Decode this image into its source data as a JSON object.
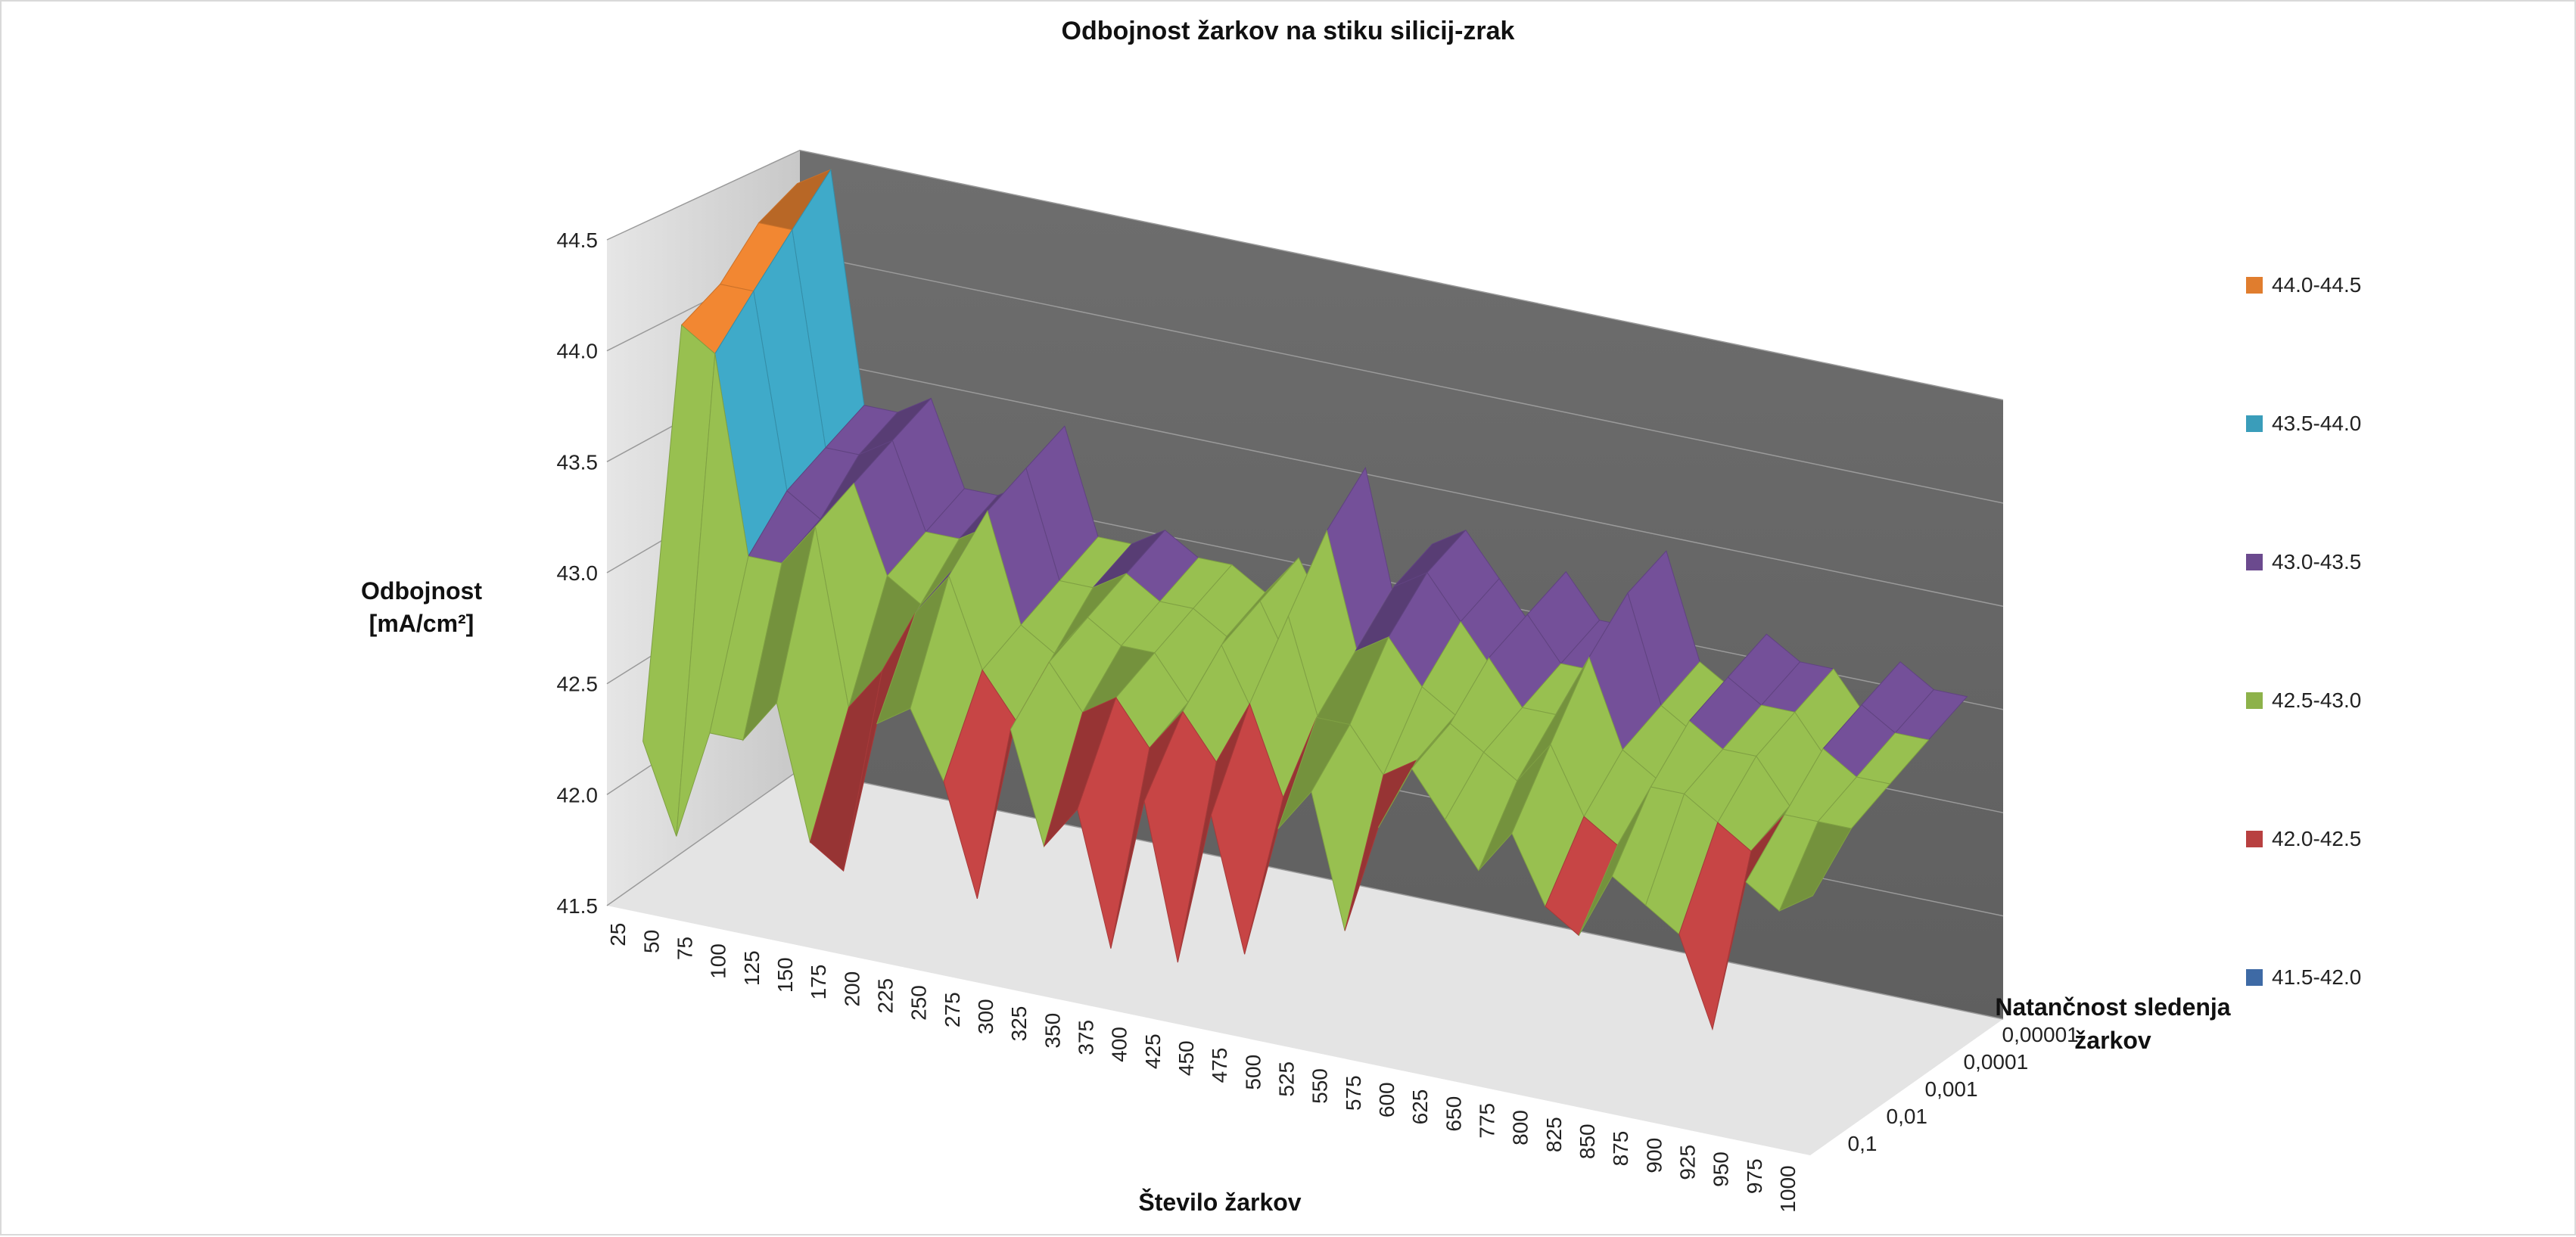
{
  "chart_data": {
    "type": "surface-3d",
    "title": "Odbojnost  žarkov na stiku silicij-zrak",
    "zlabel_lines": [
      "Odbojnost",
      "[mA/cm²]"
    ],
    "xlabel": "Število žarkov",
    "ylabel_lines": [
      "Natančnost sledenja",
      "žarkov"
    ],
    "zlim": [
      41.5,
      44.5
    ],
    "z_ticks": [
      "41.5",
      "42.0",
      "42.5",
      "43.0",
      "43.5",
      "44.0",
      "44.5"
    ],
    "x_categories": [
      "25",
      "50",
      "75",
      "100",
      "125",
      "150",
      "175",
      "200",
      "225",
      "250",
      "275",
      "300",
      "325",
      "350",
      "375",
      "400",
      "425",
      "450",
      "475",
      "500",
      "525",
      "550",
      "575",
      "600",
      "625",
      "650",
      "775",
      "800",
      "825",
      "850",
      "875",
      "900",
      "925",
      "950",
      "975",
      "1000"
    ],
    "y_categories": [
      "0,1",
      "0,01",
      "0,001",
      "0,0001",
      "0,00001"
    ],
    "bands": [
      {
        "range": "44.0-44.5",
        "color": "#e07d2e"
      },
      {
        "range": "43.5-44.0",
        "color": "#3a9dba"
      },
      {
        "range": "43.0-43.5",
        "color": "#6b4a8e"
      },
      {
        "range": "42.5-43.0",
        "color": "#8db24a"
      },
      {
        "range": "42.0-42.5",
        "color": "#b84040"
      },
      {
        "range": "41.5-42.0",
        "color": "#3e6aa5"
      }
    ],
    "legend_position": "right",
    "approx_values_by_precision": {
      "0,1": [
        42.2,
        41.8,
        42.3,
        42.3,
        42.5,
        41.9,
        41.8,
        42.5,
        42.6,
        42.3,
        41.8,
        42.6,
        42.1,
        42.3,
        41.7,
        42.4,
        41.7,
        42.4,
        41.8,
        42.4,
        42.6,
        42.0,
        42.5,
        42.8,
        42.6,
        42.4,
        42.6,
        42.3,
        42.2,
        42.5,
        42.4,
        42.3,
        41.9,
        42.6,
        42.5,
        42.6
      ],
      "0,01": [
        44.0,
        43.9,
        43.0,
        43.0,
        43.2,
        42.4,
        42.6,
        42.9,
        43.1,
        42.7,
        42.5,
        42.8,
        42.6,
        42.7,
        42.5,
        42.7,
        42.5,
        42.8,
        42.4,
        42.8,
        42.8,
        42.6,
        42.7,
        42.9,
        42.8,
        42.7,
        42.9,
        42.6,
        42.5,
        42.8,
        42.8,
        42.7,
        42.6,
        42.8,
        42.8,
        42.8
      ],
      "0,001": [
        44.1,
        44.1,
        43.2,
        43.1,
        43.3,
        42.9,
        42.8,
        43.0,
        43.3,
        42.8,
        42.7,
        42.9,
        42.8,
        42.8,
        42.6,
        42.9,
        42.6,
        43.1,
        42.6,
        43.0,
        43.1,
        42.9,
        42.8,
        43.1,
        42.9,
        42.9,
        43.2,
        42.8,
        42.7,
        43.0,
        42.9,
        42.9,
        42.7,
        43.0,
        42.9,
        42.9
      ],
      "0,0001": [
        44.3,
        44.3,
        43.3,
        43.3,
        43.4,
        43.0,
        43.0,
        43.1,
        43.4,
        42.9,
        42.9,
        43.0,
        42.9,
        42.9,
        42.8,
        43.0,
        42.7,
        43.4,
        42.8,
        43.2,
        43.3,
        43.1,
        42.9,
        43.2,
        43.0,
        43.0,
        43.4,
        42.9,
        42.8,
        43.1,
        43.0,
        43.0,
        42.8,
        43.1,
        43.0,
        43.0
      ],
      "0,00001": [
        44.4,
        44.5,
        43.4,
        43.4,
        43.5,
        43.1,
        43.1,
        43.2,
        43.5,
        43.0,
        43.0,
        43.1,
        43.0,
        43.0,
        42.9,
        43.1,
        42.8,
        43.6,
        42.9,
        43.3,
        43.4,
        43.2,
        43.0,
        43.3,
        43.1,
        43.1,
        43.5,
        43.0,
        42.9,
        43.2,
        43.1,
        43.1,
        42.9,
        43.2,
        43.1,
        43.1
      ]
    }
  }
}
